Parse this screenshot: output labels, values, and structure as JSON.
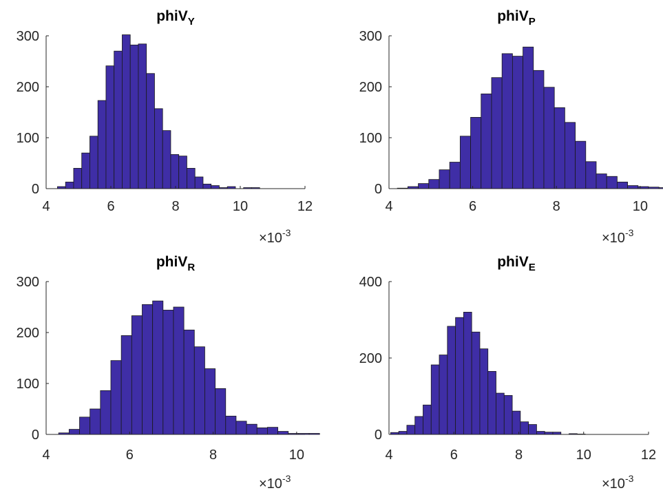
{
  "chart_data": [
    {
      "type": "bar",
      "title": "phiV",
      "title_subscript": "Y",
      "x_multiplier_label": "×10",
      "x_multiplier_exponent": "-3",
      "xlim": [
        4,
        12
      ],
      "ylim": [
        0,
        300
      ],
      "xticks": [
        4,
        6,
        8,
        10,
        12
      ],
      "xtick_labels": [
        "4",
        "6",
        "8",
        "10",
        "12"
      ],
      "yticks": [
        0,
        100,
        200,
        300
      ],
      "ytick_labels": [
        "0",
        "100",
        "200",
        "300"
      ],
      "bin_start": 4.35,
      "bin_width": 0.25,
      "values": [
        4,
        13,
        40,
        70,
        103,
        173,
        241,
        270,
        302,
        282,
        284,
        226,
        157,
        114,
        67,
        64,
        40,
        23,
        9,
        6,
        2,
        4,
        0,
        2,
        2
      ]
    },
    {
      "type": "bar",
      "title": "phiV",
      "title_subscript": "P",
      "x_multiplier_label": "×10",
      "x_multiplier_exponent": "-3",
      "xlim": [
        4,
        10.2
      ],
      "ylim": [
        0,
        300
      ],
      "xticks": [
        4,
        6,
        8,
        10
      ],
      "xtick_labels": [
        "4",
        "6",
        "8",
        "10"
      ],
      "yticks": [
        0,
        100,
        200,
        300
      ],
      "ytick_labels": [
        "0",
        "100",
        "200",
        "300"
      ],
      "bin_start": 4.2,
      "bin_width": 0.25,
      "values": [
        1,
        4,
        10,
        18,
        37,
        52,
        103,
        140,
        186,
        218,
        265,
        260,
        278,
        232,
        199,
        159,
        130,
        93,
        53,
        29,
        24,
        13,
        6,
        4,
        3,
        2
      ]
    },
    {
      "type": "bar",
      "title": "phiV",
      "title_subscript": "R",
      "x_multiplier_label": "×10",
      "x_multiplier_exponent": "-3",
      "xlim": [
        4,
        10.2
      ],
      "ylim": [
        0,
        300
      ],
      "xticks": [
        4,
        6,
        8,
        10
      ],
      "xtick_labels": [
        "4",
        "6",
        "8",
        "10"
      ],
      "yticks": [
        0,
        100,
        200,
        300
      ],
      "ytick_labels": [
        "0",
        "100",
        "200",
        "300"
      ],
      "bin_start": 4.3,
      "bin_width": 0.25,
      "values": [
        3,
        10,
        34,
        50,
        86,
        145,
        194,
        233,
        255,
        262,
        244,
        250,
        205,
        172,
        129,
        90,
        36,
        26,
        20,
        13,
        14,
        6,
        2,
        2,
        2
      ]
    },
    {
      "type": "bar",
      "title": "phiV",
      "title_subscript": "E",
      "x_multiplier_label": "×10",
      "x_multiplier_exponent": "-3",
      "xlim": [
        4,
        12
      ],
      "ylim": [
        0,
        400
      ],
      "xticks": [
        4,
        6,
        8,
        10,
        12
      ],
      "xtick_labels": [
        "4",
        "6",
        "8",
        "10",
        "12"
      ],
      "yticks": [
        0,
        200,
        400
      ],
      "ytick_labels": [
        "0",
        "200",
        "400"
      ],
      "bin_start": 4.05,
      "bin_width": 0.25,
      "values": [
        5,
        8,
        24,
        47,
        77,
        182,
        208,
        283,
        306,
        320,
        268,
        224,
        165,
        108,
        102,
        61,
        33,
        26,
        8,
        6,
        6,
        0,
        2,
        1
      ]
    }
  ],
  "style": {
    "bar_color": "#3f2ea6",
    "edge_color": "#1a1a1a",
    "axis_color": "#262626"
  }
}
